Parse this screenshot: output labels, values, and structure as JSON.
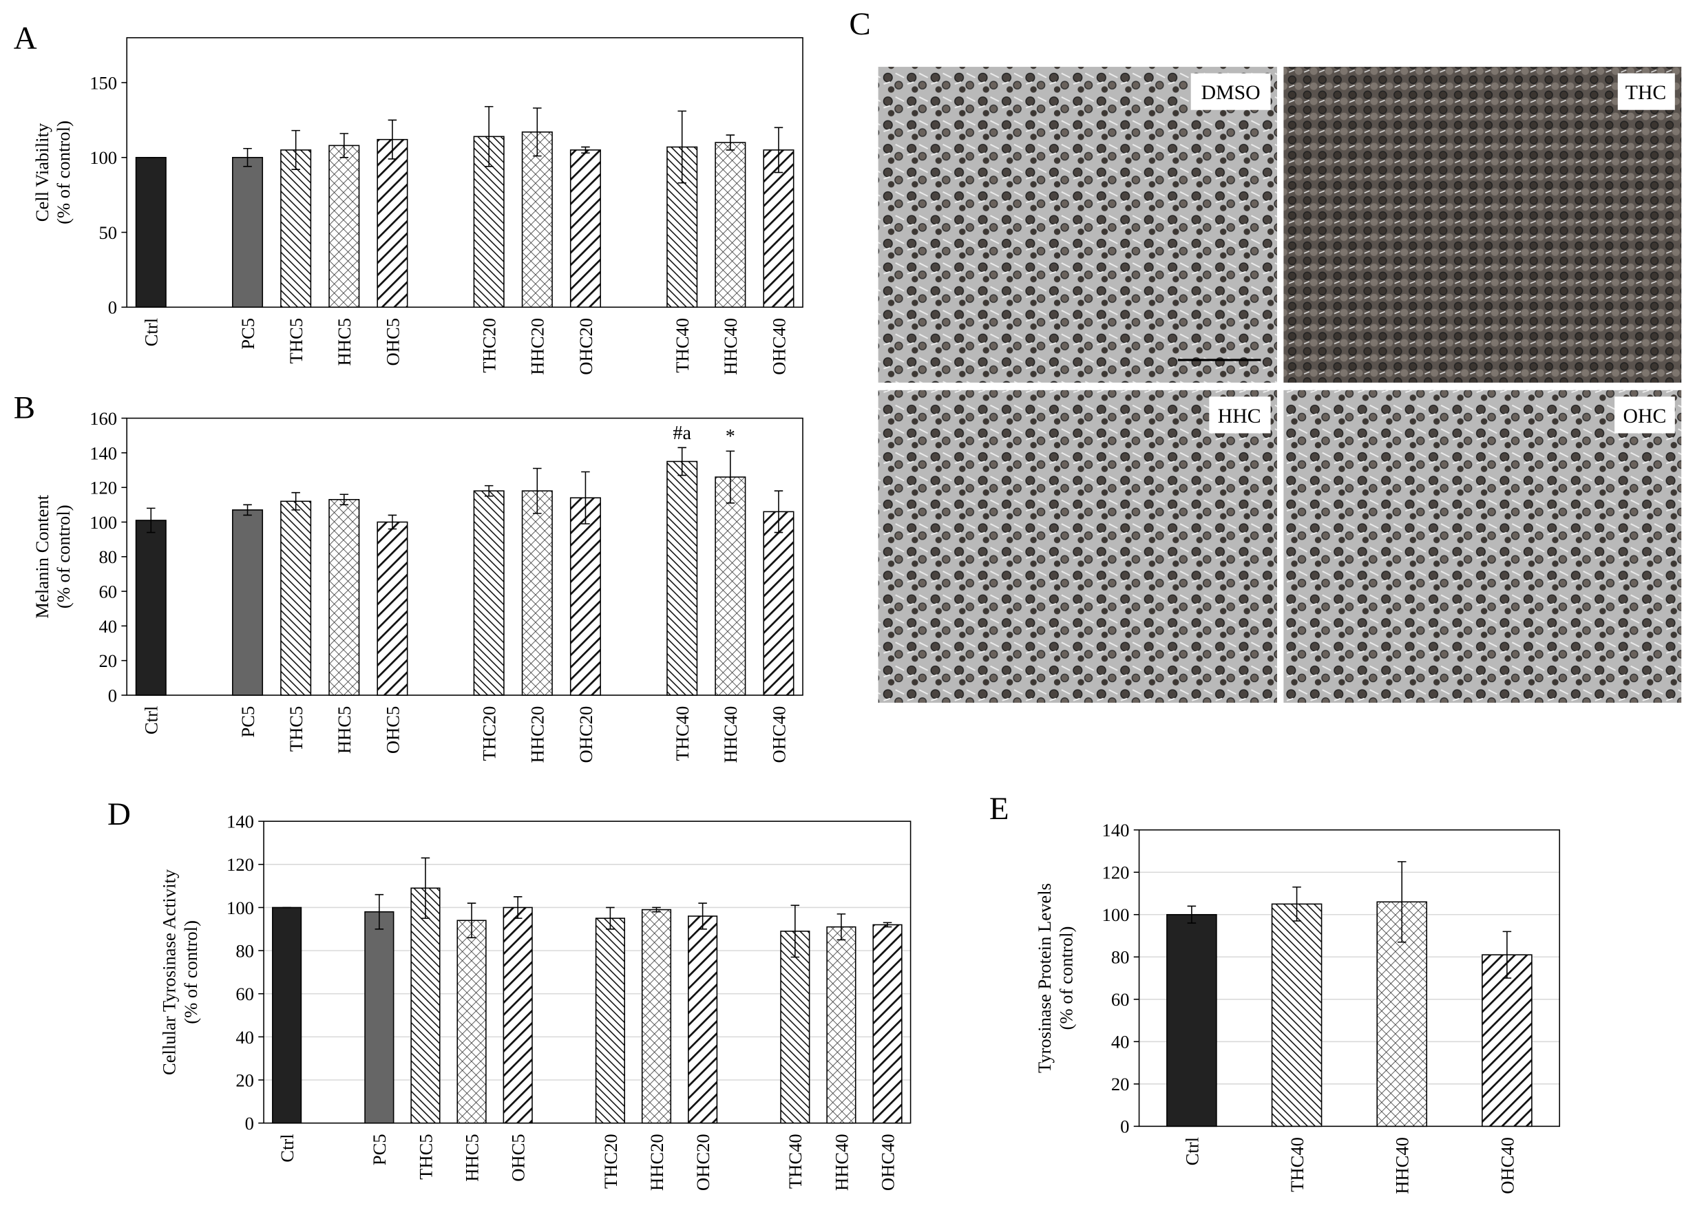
{
  "chart_data": [
    {
      "type": "bar",
      "panel": "A",
      "ylabel": [
        "Cell Viability",
        "(% of control)"
      ],
      "categories": [
        "Ctrl",
        null,
        "PC5",
        "THC5",
        "HHC5",
        "OHC5",
        null,
        "THC20",
        "HHC20",
        "OHC20",
        null,
        "THC40",
        "HHC40",
        "OHC40"
      ],
      "values": [
        100,
        null,
        100,
        105,
        108,
        112,
        null,
        114,
        117,
        105,
        null,
        107,
        110,
        105
      ],
      "errors": [
        0,
        null,
        6,
        13,
        8,
        13,
        null,
        20,
        16,
        2,
        null,
        24,
        5,
        15
      ],
      "patterns": [
        "black",
        null,
        "gray",
        "fine-diagonal",
        "crosshatch",
        "wide-diagonal",
        null,
        "fine-diagonal",
        "crosshatch",
        "wide-diagonal",
        null,
        "fine-diagonal",
        "crosshatch",
        "wide-diagonal"
      ],
      "ylim": [
        0,
        180
      ],
      "yticks": [
        0,
        50,
        100,
        150
      ],
      "grid": false
    },
    {
      "type": "bar",
      "panel": "B",
      "ylabel": [
        "Melanin Content",
        "(% of control)"
      ],
      "categories": [
        "Ctrl",
        null,
        "PC5",
        "THC5",
        "HHC5",
        "OHC5",
        null,
        "THC20",
        "HHC20",
        "OHC20",
        null,
        "THC40",
        "HHC40",
        "OHC40"
      ],
      "values": [
        101,
        null,
        107,
        112,
        113,
        100,
        null,
        118,
        118,
        114,
        null,
        135,
        126,
        106
      ],
      "errors": [
        7,
        null,
        3,
        5,
        3,
        4,
        null,
        3,
        13,
        15,
        null,
        8,
        15,
        12
      ],
      "patterns": [
        "black",
        null,
        "gray",
        "fine-diagonal",
        "crosshatch",
        "wide-diagonal",
        null,
        "fine-diagonal",
        "crosshatch",
        "wide-diagonal",
        null,
        "fine-diagonal",
        "crosshatch",
        "wide-diagonal"
      ],
      "annotations": [
        null,
        null,
        null,
        null,
        null,
        null,
        null,
        null,
        null,
        null,
        null,
        "#a",
        "*",
        null
      ],
      "ylim": [
        0,
        160
      ],
      "yticks": [
        0,
        20,
        40,
        60,
        80,
        100,
        120,
        140,
        160
      ],
      "grid": false
    },
    {
      "type": "bar",
      "panel": "D",
      "ylabel": [
        "Cellular Tyrosinase Activity",
        "(% of control)"
      ],
      "categories": [
        "Ctrl",
        null,
        "PC5",
        "THC5",
        "HHC5",
        "OHC5",
        null,
        "THC20",
        "HHC20",
        "OHC20",
        null,
        "THC40",
        "HHC40",
        "OHC40"
      ],
      "values": [
        100,
        null,
        98,
        109,
        94,
        100,
        null,
        95,
        99,
        96,
        null,
        89,
        91,
        92
      ],
      "errors": [
        0,
        null,
        8,
        14,
        8,
        5,
        null,
        5,
        1,
        6,
        null,
        12,
        6,
        1
      ],
      "patterns": [
        "black",
        null,
        "gray",
        "fine-diagonal",
        "crosshatch",
        "wide-diagonal",
        null,
        "fine-diagonal",
        "crosshatch",
        "wide-diagonal",
        null,
        "fine-diagonal",
        "crosshatch",
        "wide-diagonal"
      ],
      "ylim": [
        0,
        140
      ],
      "yticks": [
        0,
        20,
        40,
        60,
        80,
        100,
        120,
        140
      ],
      "grid": true
    },
    {
      "type": "bar",
      "panel": "E",
      "ylabel": [
        "Tyrosinase Protein Levels",
        "(% of control)"
      ],
      "categories": [
        "Ctrl",
        "THC40",
        "HHC40",
        "OHC40"
      ],
      "values": [
        100,
        105,
        106,
        81
      ],
      "errors": [
        4,
        8,
        19,
        11
      ],
      "patterns": [
        "black",
        "fine-diagonal",
        "crosshatch",
        "wide-diagonal"
      ],
      "ylim": [
        0,
        140
      ],
      "yticks": [
        0,
        20,
        40,
        60,
        80,
        100,
        120,
        140
      ],
      "grid": true
    }
  ],
  "image_panel": {
    "panel": "C",
    "images": [
      {
        "label": "DMSO"
      },
      {
        "label": "THC"
      },
      {
        "label": "HHC"
      },
      {
        "label": "OHC"
      }
    ]
  }
}
